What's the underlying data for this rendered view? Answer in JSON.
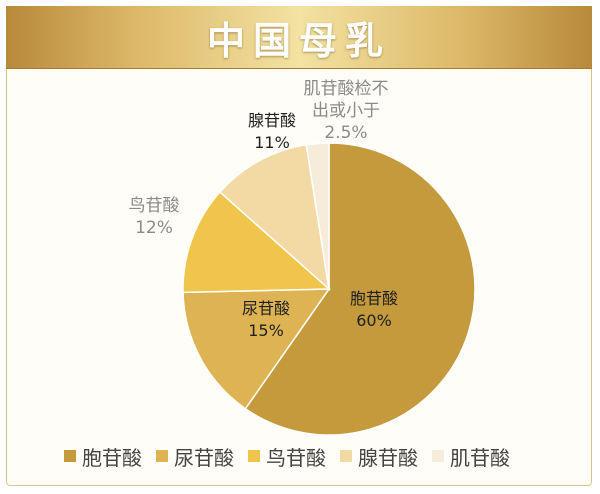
{
  "title": "中国母乳",
  "chart_data": {
    "type": "pie",
    "slices": [
      {
        "name": "胞苷酸",
        "value": 60,
        "value_label": "60%",
        "chart_label": "胞苷酸",
        "color": "#c49a3c"
      },
      {
        "name": "尿苷酸",
        "value": 15,
        "value_label": "15%",
        "chart_label": "尿苷酸",
        "color": "#ddb354"
      },
      {
        "name": "鸟苷酸",
        "value": 12,
        "value_label": "12%",
        "chart_label": "鸟苷酸",
        "color": "#f0c54c"
      },
      {
        "name": "腺苷酸",
        "value": 11,
        "value_label": "11%",
        "chart_label": "腺苷酸",
        "color": "#f3d9a4"
      },
      {
        "name": "肌苷酸",
        "value": 2.5,
        "value_label": "2.5%",
        "chart_label": "肌苷酸检不出或小于",
        "color": "#f7ecd9"
      }
    ],
    "legend": [
      "胞苷酸",
      "尿苷酸",
      "鸟苷酸",
      "腺苷酸",
      "肌苷酸"
    ],
    "legend_position": "bottom"
  }
}
